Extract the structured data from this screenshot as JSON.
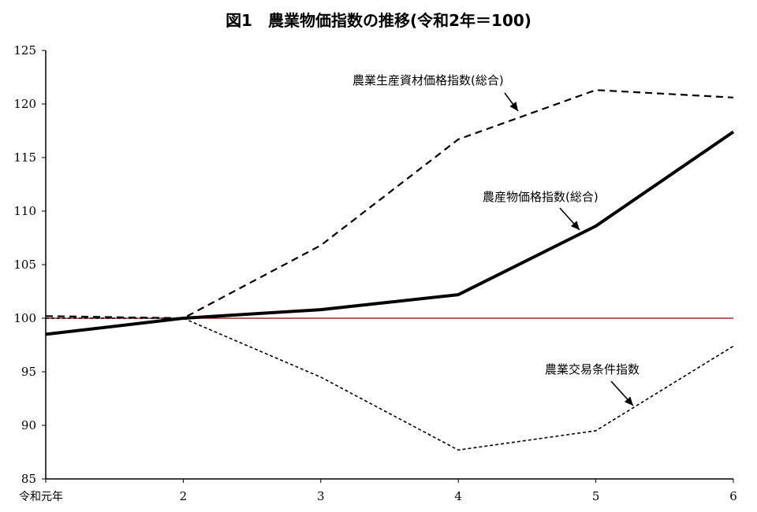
{
  "chart_data": {
    "type": "line",
    "title": "図1　農業物価指数の推移(令和2年＝100)",
    "xlabel": "",
    "ylabel": "",
    "categories": [
      "令和元年",
      "2",
      "3",
      "4",
      "5",
      "6"
    ],
    "ylim": [
      85,
      125
    ],
    "yticks": [
      85,
      90,
      95,
      100,
      105,
      110,
      115,
      120,
      125
    ],
    "grid": false,
    "reference_line": {
      "value": 100,
      "color": "#8b0000"
    },
    "series": [
      {
        "name": "農業生産資材価格指数(総合)",
        "style": "dashed",
        "color": "#000000",
        "values": [
          100.2,
          100.0,
          106.8,
          116.7,
          121.3,
          120.6
        ]
      },
      {
        "name": "農産物価格指数(総合)",
        "style": "solid-thick",
        "color": "#000000",
        "values": [
          98.5,
          100.0,
          100.8,
          102.2,
          108.6,
          117.4
        ]
      },
      {
        "name": "農業交易条件指数",
        "style": "dotted",
        "color": "#000000",
        "values": [
          100.0,
          100.0,
          94.5,
          87.7,
          89.5,
          97.4
        ]
      }
    ]
  }
}
